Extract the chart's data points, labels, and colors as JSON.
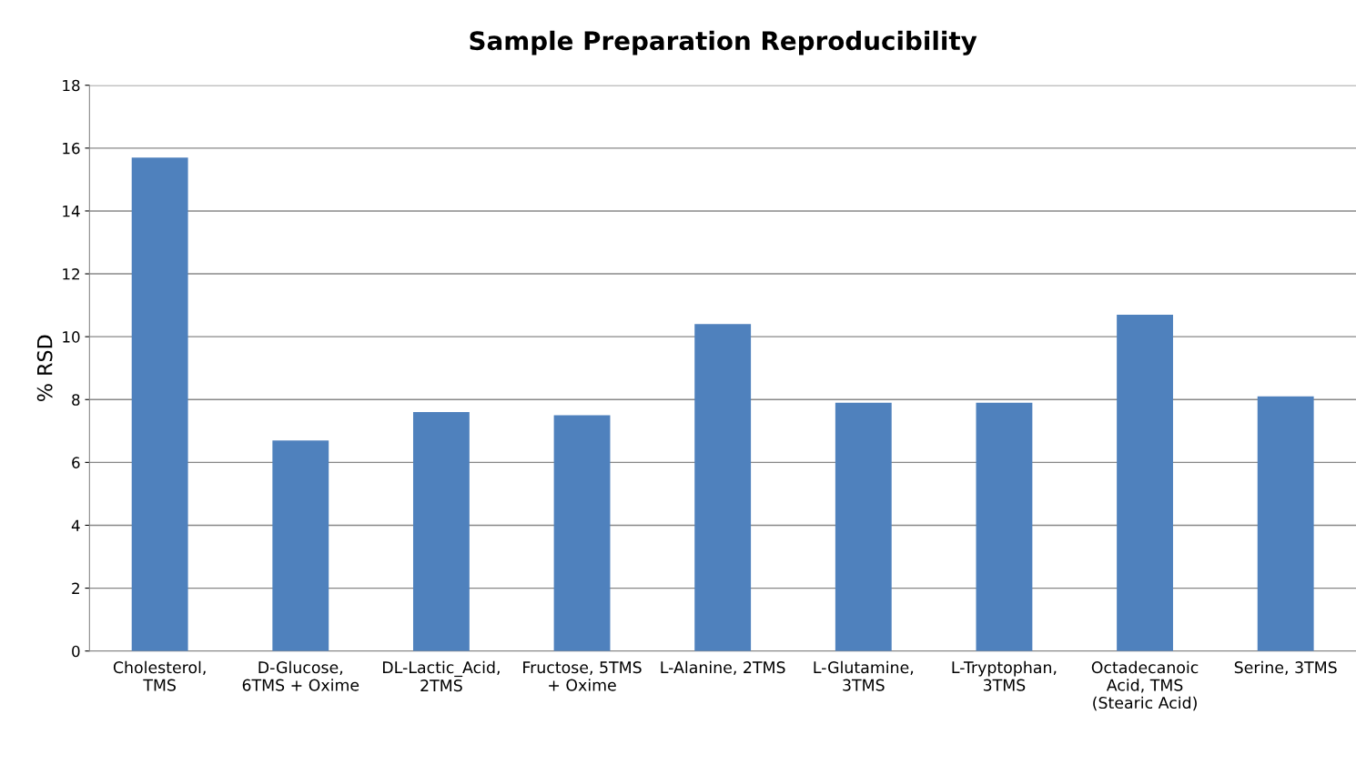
{
  "chart_data": {
    "type": "bar",
    "title": "Sample Preparation Reproducibility",
    "ylabel": "% RSD",
    "categories": [
      "Cholesterol,\nTMS",
      "D-Glucose,\n6TMS + Oxime",
      "DL-Lactic_Acid,\n2TMS",
      "Fructose, 5TMS\n+ Oxime",
      "L-Alanine, 2TMS",
      "L-Glutamine,\n3TMS",
      "L-Tryptophan,\n3TMS",
      "Octadecanoic\nAcid, TMS\n(Stearic Acid)",
      "Serine, 3TMS"
    ],
    "values": [
      15.7,
      6.7,
      7.6,
      7.5,
      10.4,
      7.9,
      7.9,
      10.7,
      8.1
    ],
    "color": "#4f81bd",
    "ylim": [
      0,
      18
    ],
    "yticks": [
      0,
      2,
      4,
      6,
      8,
      10,
      12,
      14,
      16,
      18
    ],
    "grid": "y"
  }
}
